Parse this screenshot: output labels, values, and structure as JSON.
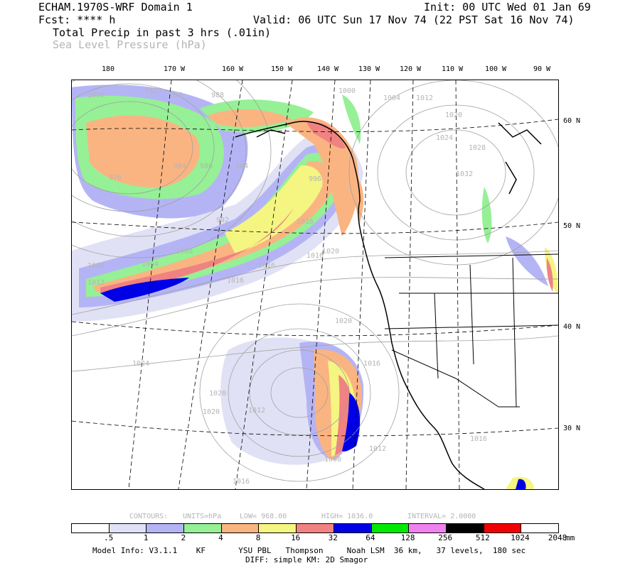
{
  "header": {
    "title": "ECHAM.1970S-WRF Domain 1",
    "init": "Init: 00 UTC Wed 01 Jan 69",
    "fcst": "Fcst: **** h",
    "valid": "Valid: 06 UTC Sun 17 Nov 74 (22 PST Sat 16 Nov 74)",
    "field1": "Total Precip in past 3 hrs (.01in)",
    "field2": "Sea Level Pressure (hPa)"
  },
  "map": {
    "lon_labels": [
      "180",
      "170 W",
      "160 W",
      "150 W",
      "140 W",
      "130 W",
      "120 W",
      "110 W",
      "100 W",
      "90 W"
    ],
    "lat_labels": [
      "60 N",
      "50 N",
      "40 N",
      "30 N"
    ],
    "isobar_labels": [
      "1000",
      "992",
      "988",
      "988",
      "1000",
      "1004",
      "1012",
      "1020",
      "1024",
      "1028",
      "1032",
      "976",
      "984",
      "980",
      "984",
      "992",
      "996",
      "1016",
      "1000",
      "1008",
      "1004",
      "1012",
      "1016",
      "1020",
      "1020",
      "1024",
      "1020",
      "1020",
      "1012",
      "1016",
      "1012",
      "1016",
      "1016",
      "1000",
      "1016",
      "1016"
    ]
  },
  "contours_info": {
    "contours": "CONTOURS:",
    "units": "UNITS=hPa",
    "low": "LOW=  968.00",
    "high": "HIGH=  1036.0",
    "interval": "INTERVAL=   2.0000"
  },
  "colorbar": {
    "colors": [
      "#ffffff",
      "#e1e1f5",
      "#b4b4f5",
      "#96f096",
      "#fab482",
      "#f5f582",
      "#f08282",
      "#0000e6",
      "#00ea00",
      "#f082f0",
      "#000000",
      "#f00000",
      "#ffffff"
    ],
    "labels": [
      ".5",
      "1",
      "2",
      "4",
      "8",
      "16",
      "32",
      "64",
      "128",
      "256",
      "512",
      "1024",
      "2048"
    ],
    "unit": "mm"
  },
  "footer": {
    "line1": "Model Info: V3.1.1    KF       YSU PBL   Thompson     Noah LSM  36 km,   37 levels,  180 sec",
    "line2": "DIFF: simple KM: 2D Smagor"
  }
}
